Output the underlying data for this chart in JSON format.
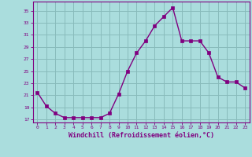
{
  "x": [
    0,
    1,
    2,
    3,
    4,
    5,
    6,
    7,
    8,
    9,
    10,
    11,
    12,
    13,
    14,
    15,
    16,
    17,
    18,
    19,
    20,
    21,
    22,
    23
  ],
  "y": [
    21.5,
    19.2,
    18.0,
    17.3,
    17.3,
    17.3,
    17.3,
    17.3,
    18.0,
    21.2,
    25.0,
    28.0,
    30.0,
    32.5,
    34.0,
    35.5,
    30.0,
    30.0,
    30.0,
    28.0,
    24.0,
    23.2,
    23.2,
    22.2
  ],
  "line_color": "#800080",
  "marker_color": "#800080",
  "bg_color": "#aadddd",
  "grid_color": "#88bbbb",
  "axis_color": "#800080",
  "tick_color": "#800080",
  "xlabel": "Windchill (Refroidissement éolien,°C)",
  "ylim": [
    16.5,
    36.5
  ],
  "yticks": [
    17,
    19,
    21,
    23,
    25,
    27,
    29,
    31,
    33,
    35
  ],
  "xticks": [
    0,
    1,
    2,
    3,
    4,
    5,
    6,
    7,
    8,
    9,
    10,
    11,
    12,
    13,
    14,
    15,
    16,
    17,
    18,
    19,
    20,
    21,
    22,
    23
  ],
  "title": ""
}
